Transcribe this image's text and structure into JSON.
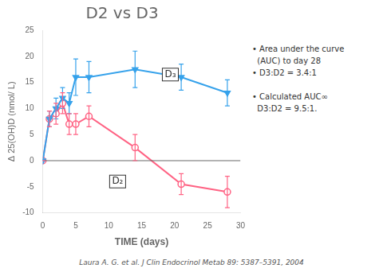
{
  "chart_data": {
    "type": "line",
    "title": "D2 vs D3",
    "xlabel": "TIME (days)",
    "ylabel": "Δ 25(OH)D (nmol/ L)",
    "xlim": [
      0,
      30
    ],
    "ylim": [
      -10,
      25
    ],
    "xticks": [
      0,
      5,
      10,
      15,
      20,
      25,
      30
    ],
    "yticks": [
      -10,
      -5,
      0,
      5,
      10,
      15,
      20,
      25
    ],
    "grid": false,
    "series": [
      {
        "x": [
          0,
          1,
          2,
          3,
          4,
          5,
          7,
          14,
          21,
          28
        ],
        "values": [
          0,
          8,
          10,
          12,
          11,
          16,
          16,
          17.5,
          16,
          13
        ],
        "yerr": [
          0.01,
          1.5,
          2,
          2,
          2,
          3.5,
          3,
          3.5,
          2.5,
          2.5
        ],
        "marker": "triangle_down",
        "line_style": "solid"
      },
      {
        "x": [
          0,
          1,
          2,
          3,
          4,
          5,
          7,
          14,
          21,
          28
        ],
        "values": [
          0,
          8,
          9,
          11,
          7,
          7,
          8.5,
          2.5,
          -4.5,
          -6
        ],
        "yerr": [
          0.01,
          1.5,
          2,
          2,
          2,
          2,
          2,
          2.5,
          2,
          3
        ],
        "marker": "circle_open",
        "line_style": "solid"
      }
    ],
    "annotations": [
      {
        "text": "D₃",
        "x": 18.5,
        "y": 16.5
      },
      {
        "text": "D₂",
        "x": 10.5,
        "y": -4
      }
    ],
    "hline_y": 0,
    "note": "• Area under the curve\n  (AUC) to day 28\n• D3:D2 = 3.4:1\n\n• Calculated AUC∞\n  D3:D2 = 9.5:1.",
    "footer": "Laura A. G. et al. J Clin Endocrinol Metab 89: 5387–5391, 2004"
  }
}
